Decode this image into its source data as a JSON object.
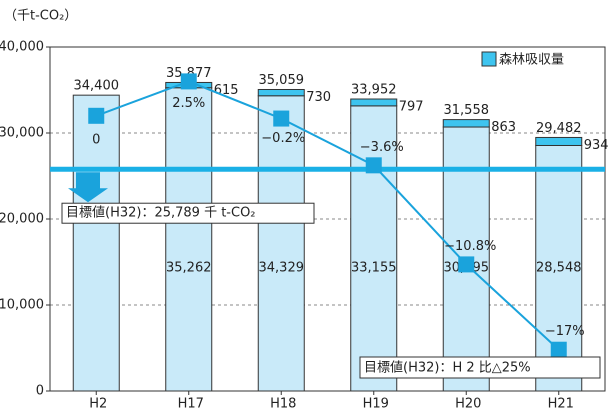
{
  "chart_data": {
    "type": "bar",
    "unit_label": "（千t-CO₂）",
    "categories": [
      "H2",
      "H17",
      "H18",
      "H19",
      "H20",
      "H21"
    ],
    "ylim": [
      0,
      40000
    ],
    "yticks": [
      0,
      {
        "value": 10000,
        "label": "10,000"
      },
      {
        "value": 20000,
        "label": "20,000"
      },
      {
        "value": 30000,
        "label": "30,000"
      },
      {
        "value": 40000,
        "label": "40,000"
      }
    ],
    "grid": true,
    "series": [
      {
        "color": "#c9eaf9",
        "values": [
          34400,
          35262,
          34329,
          33155,
          30695,
          28548
        ],
        "value_labels": [
          null,
          "35,262",
          "34,329",
          "33,155",
          "30,695",
          "28,548"
        ]
      },
      {
        "name": "森林吸収量",
        "color": "#3ec4ef",
        "values": [
          null,
          615,
          730,
          797,
          863,
          934
        ]
      }
    ],
    "totals": {
      "values": [
        34400,
        35877,
        35059,
        33952,
        31558,
        29482
      ],
      "value_labels": [
        "34,400",
        "35,877",
        "35,059",
        "33,952",
        "31,558",
        "29,482"
      ]
    },
    "line": {
      "type": "line",
      "axis": "y2",
      "color": "#1aa3dc",
      "values": [
        0,
        2.5,
        -0.2,
        -3.6,
        -10.8,
        -17
      ],
      "value_labels": [
        "0",
        "2.5%",
        "−0.2%",
        "−3.6%",
        "−10.8%",
        "−17%"
      ]
    },
    "y2lim": [
      -20,
      5
    ],
    "target": {
      "value": 25789,
      "label": "目標値(H32)：25,789 千 t-CO₂"
    },
    "target_note": "目標値(H32)：H 2 比△25%",
    "legend": "top-right"
  }
}
